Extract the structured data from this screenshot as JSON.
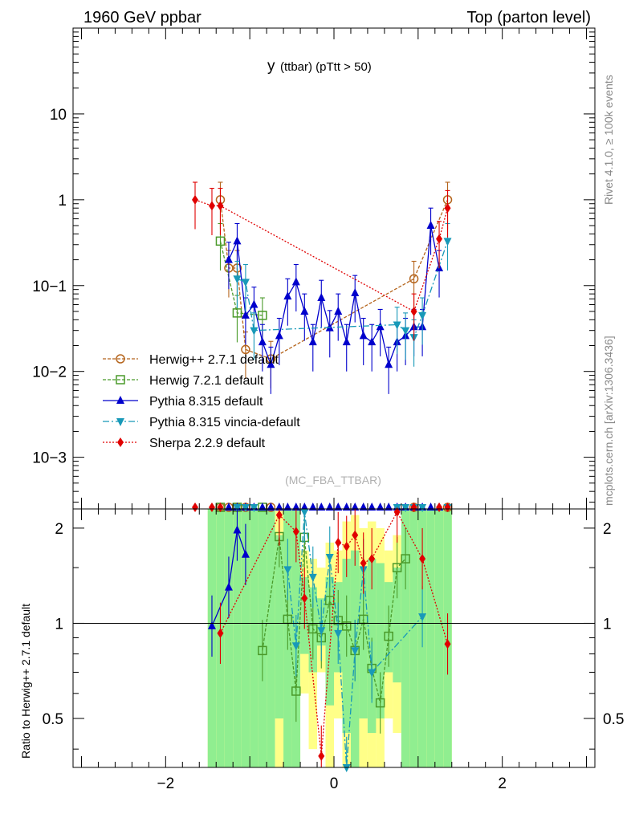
{
  "header": {
    "left": "1960 GeV ppbar",
    "right": "Top (parton level)"
  },
  "side_labels": {
    "rivet": "Rivet 4.1.0, ≥ 100k events",
    "mcplots": "mcplots.cern.ch [arXiv:1306.3436]"
  },
  "colors": {
    "herwigpp": "#b5651d",
    "herwig7": "#4a9a2a",
    "pythia": "#0000cc",
    "vincia": "#1899b8",
    "sherpa": "#e00000",
    "band_green": "#90ee90",
    "band_yellow": "#ffff88"
  },
  "chart_data": [
    {
      "type": "scatter",
      "title_main": "y",
      "title_sub": "(ttbar) (pTtt > 50)",
      "watermark": "(MC_FBA_TTBAR)",
      "yscale": "log",
      "xlim": [
        -3.1,
        3.1
      ],
      "ylim": [
        0.00025,
        100
      ],
      "ytick_labels": [
        "10",
        "1",
        "10−1",
        "10−2",
        "10−3"
      ],
      "ytick_values": [
        10,
        1,
        0.1,
        0.01,
        0.001
      ],
      "legend_position": "left-middle",
      "legend": [
        "Herwig++ 2.7.1 default",
        "Herwig 7.2.1 default",
        "Pythia 8.315 default",
        "Pythia 8.315 vincia-default",
        "Sherpa 2.2.9 default"
      ],
      "series": [
        {
          "name": "Herwig++ 2.7.1 default",
          "key": "herwigpp",
          "marker": "circle-open",
          "dash": "4,2",
          "x": [
            -1.35,
            -1.25,
            -1.15,
            -1.05,
            -0.75,
            0.95,
            1.35
          ],
          "y": [
            1.0,
            0.16,
            0.16,
            0.018,
            0.014,
            0.12,
            1.0
          ]
        },
        {
          "name": "Herwig 7.2.1 default",
          "key": "herwig7",
          "marker": "square-open",
          "dash": "4,2",
          "x": [
            -1.35,
            -1.15,
            -0.85
          ],
          "y": [
            0.33,
            0.048,
            0.045
          ]
        },
        {
          "name": "Pythia 8.315 default",
          "key": "pythia",
          "marker": "triangle-up",
          "dash": "",
          "x": [
            -1.25,
            -1.15,
            -1.05,
            -0.95,
            -0.85,
            -0.75,
            -0.65,
            -0.55,
            -0.45,
            -0.35,
            -0.25,
            -0.15,
            -0.05,
            0.05,
            0.15,
            0.25,
            0.35,
            0.45,
            0.55,
            0.65,
            0.75,
            0.85,
            0.95,
            1.05,
            1.15,
            1.25
          ],
          "y": [
            0.2,
            0.33,
            0.045,
            0.06,
            0.022,
            0.012,
            0.026,
            0.075,
            0.11,
            0.05,
            0.022,
            0.072,
            0.032,
            0.05,
            0.022,
            0.082,
            0.026,
            0.022,
            0.033,
            0.012,
            0.022,
            0.026,
            0.033,
            0.033,
            0.5,
            0.16
          ]
        },
        {
          "name": "Pythia 8.315 vincia-default",
          "key": "vincia",
          "marker": "triangle-down",
          "dash": "8,3,2,3",
          "x": [
            -1.15,
            -1.05,
            -0.95,
            0.75,
            0.85,
            0.95,
            1.05,
            1.35
          ],
          "y": [
            0.12,
            0.11,
            0.03,
            0.035,
            0.03,
            0.025,
            0.045,
            0.33
          ]
        },
        {
          "name": "Sherpa 2.2.9 default",
          "key": "sherpa",
          "marker": "diamond",
          "dash": "2,2",
          "x": [
            -1.65,
            -1.45,
            -1.35,
            0.95,
            1.25,
            1.35
          ],
          "y": [
            1.0,
            0.85,
            0.85,
            0.05,
            0.35,
            0.8
          ]
        }
      ]
    },
    {
      "type": "scatter",
      "ylabel": "Ratio to Herwig++ 2.7.1 default",
      "xlim": [
        -3.1,
        3.1
      ],
      "ylim": [
        0.35,
        2.3
      ],
      "xtick_labels": [
        "−2",
        "0",
        "2"
      ],
      "xtick_values": [
        -2,
        0,
        2
      ],
      "ytick_labels": [
        "2",
        "1",
        "0.5"
      ],
      "ytick_values": [
        2,
        1,
        0.5
      ],
      "reference_line": 1,
      "bands": {
        "green_x": [
          -1.45,
          -1.35,
          -1.25,
          -1.15,
          -1.05,
          -0.95,
          -0.85,
          -0.75,
          -0.65,
          -0.55,
          -0.45,
          -0.35,
          -0.25,
          -0.15,
          -0.05,
          0.05,
          0.15,
          0.25,
          0.35,
          0.45,
          0.55,
          0.65,
          0.75,
          0.85,
          0.95,
          1.05,
          1.15,
          1.25,
          1.35
        ],
        "green_lo": [
          0.35,
          0.35,
          0.35,
          0.35,
          0.35,
          0.35,
          0.35,
          0.35,
          0.5,
          0.35,
          0.35,
          0.8,
          0.7,
          0.85,
          0.55,
          0.7,
          0.45,
          0.35,
          0.5,
          0.45,
          0.5,
          0.7,
          0.65,
          0.35,
          0.35,
          0.35,
          0.35,
          0.35,
          0.35
        ],
        "green_hi": [
          2.3,
          2.3,
          2.3,
          2.3,
          2.3,
          2.3,
          2.3,
          2.3,
          1.9,
          2.3,
          2.3,
          1.4,
          1.3,
          1.2,
          1.4,
          1.35,
          1.6,
          1.7,
          1.5,
          1.6,
          1.55,
          1.35,
          1.5,
          2.3,
          2.3,
          2.3,
          2.3,
          2.3,
          2.3
        ],
        "yellow_lo": [
          0.35,
          0.35,
          0.35,
          0.35,
          0.35,
          0.35,
          0.35,
          0.35,
          0.35,
          0.35,
          0.35,
          0.6,
          0.4,
          0.7,
          0.35,
          0.5,
          0.35,
          0.35,
          0.35,
          0.35,
          0.35,
          0.5,
          0.45,
          0.35,
          0.35,
          0.35,
          0.35,
          0.35,
          0.35
        ],
        "yellow_hi": [
          2.3,
          2.3,
          2.3,
          2.3,
          2.3,
          2.3,
          2.3,
          2.3,
          2.3,
          2.3,
          2.3,
          1.7,
          1.6,
          1.5,
          1.8,
          1.7,
          2.1,
          2.2,
          2.0,
          2.1,
          2.0,
          1.7,
          1.9,
          2.3,
          2.3,
          2.3,
          2.3,
          2.3,
          2.3
        ],
        "bin_width": 0.1
      },
      "series": [
        {
          "key": "herwig7",
          "marker": "square-open",
          "dash": "4,2",
          "x": [
            -0.85,
            -0.65,
            -0.55,
            -0.45,
            -0.35,
            -0.25,
            -0.15,
            -0.05,
            0.05,
            0.15,
            0.25,
            0.35,
            0.45,
            0.55,
            0.65,
            0.75,
            0.85
          ],
          "y": [
            0.82,
            1.88,
            1.03,
            0.61,
            1.87,
            0.96,
            0.9,
            1.18,
            1.02,
            0.98,
            0.82,
            1.03,
            0.72,
            0.56,
            0.91,
            1.5,
            1.6
          ]
        },
        {
          "key": "pythia",
          "marker": "triangle-up",
          "dash": "",
          "x": [
            -1.45,
            -1.25,
            -1.15,
            -1.05
          ],
          "y": [
            0.98,
            1.3,
            1.97,
            1.65
          ]
        },
        {
          "key": "vincia",
          "marker": "triangle-down",
          "dash": "8,3,2,3",
          "x": [
            -0.55,
            -0.45,
            -0.35,
            -0.25,
            -0.15,
            -0.05,
            0.05,
            0.15,
            0.25,
            0.35,
            0.45,
            1.05
          ],
          "y": [
            1.48,
            0.85,
            2.25,
            1.4,
            0.95,
            1.62,
            0.93,
            0.35,
            0.82,
            1.48,
            0.7,
            1.05
          ]
        },
        {
          "key": "sherpa",
          "marker": "diamond",
          "dash": "2,2",
          "x": [
            -1.35,
            -0.65,
            -0.45,
            -0.35,
            -0.15,
            0.05,
            0.15,
            0.25,
            0.35,
            0.45,
            0.75,
            1.05,
            1.35
          ],
          "y": [
            0.93,
            2.2,
            1.95,
            1.2,
            0.38,
            1.8,
            1.75,
            1.9,
            1.55,
            1.6,
            2.25,
            1.6,
            0.86
          ]
        }
      ]
    }
  ]
}
